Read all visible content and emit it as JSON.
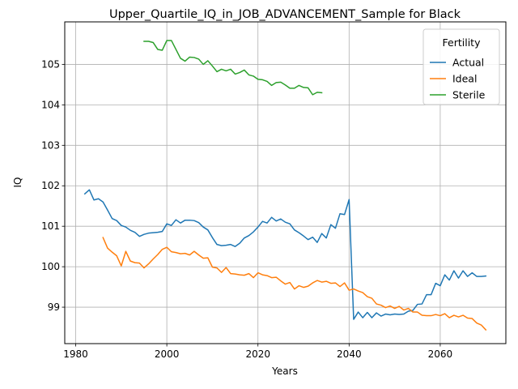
{
  "chart_data": {
    "type": "line",
    "title": "Upper_Quartile_IQ_in_JOB_ADVANCEMENT_Sample for Black",
    "xlabel": "Years",
    "ylabel": "IQ",
    "xlim": [
      1977.6,
      2074.4
    ],
    "ylim": [
      98.1,
      106.05
    ],
    "xticks": [
      1980,
      2000,
      2020,
      2040,
      2060
    ],
    "yticks": [
      99,
      100,
      101,
      102,
      103,
      104,
      105
    ],
    "grid": true,
    "legend": {
      "title": "Fertility",
      "position": "top-right"
    },
    "series": [
      {
        "name": "Actual",
        "color": "#1f77b4",
        "x": [
          1982,
          1983,
          1984,
          1985,
          1986,
          1987,
          1988,
          1989,
          1990,
          1991,
          1992,
          1993,
          1994,
          1995,
          1996,
          1997,
          1998,
          1999,
          2000,
          2001,
          2002,
          2003,
          2004,
          2005,
          2006,
          2007,
          2008,
          2009,
          2010,
          2011,
          2012,
          2013,
          2014,
          2015,
          2016,
          2017,
          2018,
          2019,
          2020,
          2021,
          2022,
          2023,
          2024,
          2025,
          2026,
          2027,
          2028,
          2029,
          2030,
          2031,
          2032,
          2033,
          2034,
          2035,
          2036,
          2037,
          2038,
          2039,
          2040,
          2041,
          2042,
          2043,
          2044,
          2045,
          2046,
          2047,
          2048,
          2049,
          2050,
          2051,
          2052,
          2053,
          2054,
          2055,
          2056,
          2057,
          2058,
          2059,
          2060,
          2061,
          2062,
          2063,
          2064,
          2065,
          2066,
          2067,
          2068,
          2069,
          2070
        ],
        "values": [
          101.8,
          101.9,
          101.65,
          101.68,
          101.6,
          101.4,
          101.19,
          101.14,
          101.02,
          100.98,
          100.9,
          100.85,
          100.75,
          100.8,
          100.83,
          100.84,
          100.85,
          100.87,
          101.06,
          101.02,
          101.16,
          101.08,
          101.15,
          101.15,
          101.14,
          101.09,
          100.98,
          100.91,
          100.72,
          100.55,
          100.52,
          100.53,
          100.55,
          100.5,
          100.58,
          100.71,
          100.77,
          100.86,
          100.98,
          101.12,
          101.08,
          101.22,
          101.13,
          101.18,
          101.1,
          101.06,
          100.91,
          100.84,
          100.76,
          100.67,
          100.73,
          100.6,
          100.82,
          100.71,
          101.04,
          100.95,
          101.31,
          101.29,
          101.66,
          98.7,
          98.88,
          98.74,
          98.87,
          98.74,
          98.86,
          98.78,
          98.83,
          98.81,
          98.83,
          98.82,
          98.83,
          98.9,
          98.92,
          99.07,
          99.08,
          99.31,
          99.31,
          99.59,
          99.53,
          99.8,
          99.67,
          99.9,
          99.72,
          99.9,
          99.76,
          99.85,
          99.76,
          99.76,
          99.77
        ]
      },
      {
        "name": "Ideal",
        "color": "#ff7f0e",
        "x": [
          1986,
          1987,
          1988,
          1989,
          1990,
          1991,
          1992,
          1993,
          1994,
          1995,
          1996,
          1997,
          1998,
          1999,
          2000,
          2001,
          2002,
          2003,
          2004,
          2005,
          2006,
          2007,
          2008,
          2009,
          2010,
          2011,
          2012,
          2013,
          2014,
          2015,
          2016,
          2017,
          2018,
          2019,
          2020,
          2021,
          2022,
          2023,
          2024,
          2025,
          2026,
          2027,
          2028,
          2029,
          2030,
          2031,
          2032,
          2033,
          2034,
          2035,
          2036,
          2037,
          2038,
          2039,
          2040,
          2041,
          2042,
          2043,
          2044,
          2045,
          2046,
          2047,
          2048,
          2049,
          2050,
          2051,
          2052,
          2053,
          2054,
          2055,
          2056,
          2057,
          2058,
          2059,
          2060,
          2061,
          2062,
          2063,
          2064,
          2065,
          2066,
          2067,
          2068,
          2069,
          2070
        ],
        "values": [
          100.72,
          100.46,
          100.36,
          100.27,
          100.02,
          100.38,
          100.14,
          100.1,
          100.09,
          99.97,
          100.07,
          100.19,
          100.3,
          100.43,
          100.48,
          100.37,
          100.35,
          100.32,
          100.33,
          100.29,
          100.38,
          100.29,
          100.21,
          100.22,
          99.99,
          99.97,
          99.86,
          99.98,
          99.83,
          99.82,
          99.8,
          99.79,
          99.83,
          99.73,
          99.85,
          99.8,
          99.78,
          99.73,
          99.74,
          99.65,
          99.57,
          99.61,
          99.45,
          99.53,
          99.49,
          99.52,
          99.6,
          99.66,
          99.62,
          99.64,
          99.59,
          99.6,
          99.51,
          99.6,
          99.42,
          99.45,
          99.4,
          99.36,
          99.26,
          99.22,
          99.08,
          99.05,
          98.99,
          99.03,
          98.97,
          99.02,
          98.93,
          98.97,
          98.88,
          98.88,
          98.8,
          98.79,
          98.79,
          98.82,
          98.79,
          98.84,
          98.74,
          98.8,
          98.76,
          98.8,
          98.73,
          98.72,
          98.61,
          98.56,
          98.44
        ]
      },
      {
        "name": "Sterile",
        "color": "#2ca02c",
        "x": [
          1995,
          1996,
          1997,
          1998,
          1999,
          2000,
          2001,
          2002,
          2003,
          2004,
          2005,
          2006,
          2007,
          2008,
          2009,
          2010,
          2011,
          2012,
          2013,
          2014,
          2015,
          2016,
          2017,
          2018,
          2019,
          2020,
          2021,
          2022,
          2023,
          2024,
          2025,
          2026,
          2027,
          2028,
          2029,
          2030,
          2031,
          2032,
          2033,
          2034
        ],
        "values": [
          105.57,
          105.57,
          105.54,
          105.37,
          105.35,
          105.59,
          105.59,
          105.37,
          105.15,
          105.08,
          105.18,
          105.17,
          105.13,
          105.0,
          105.09,
          104.96,
          104.82,
          104.88,
          104.84,
          104.88,
          104.76,
          104.8,
          104.86,
          104.74,
          104.71,
          104.63,
          104.62,
          104.58,
          104.48,
          104.55,
          104.56,
          104.49,
          104.41,
          104.41,
          104.48,
          104.43,
          104.42,
          104.25,
          104.31,
          104.3
        ]
      }
    ]
  }
}
